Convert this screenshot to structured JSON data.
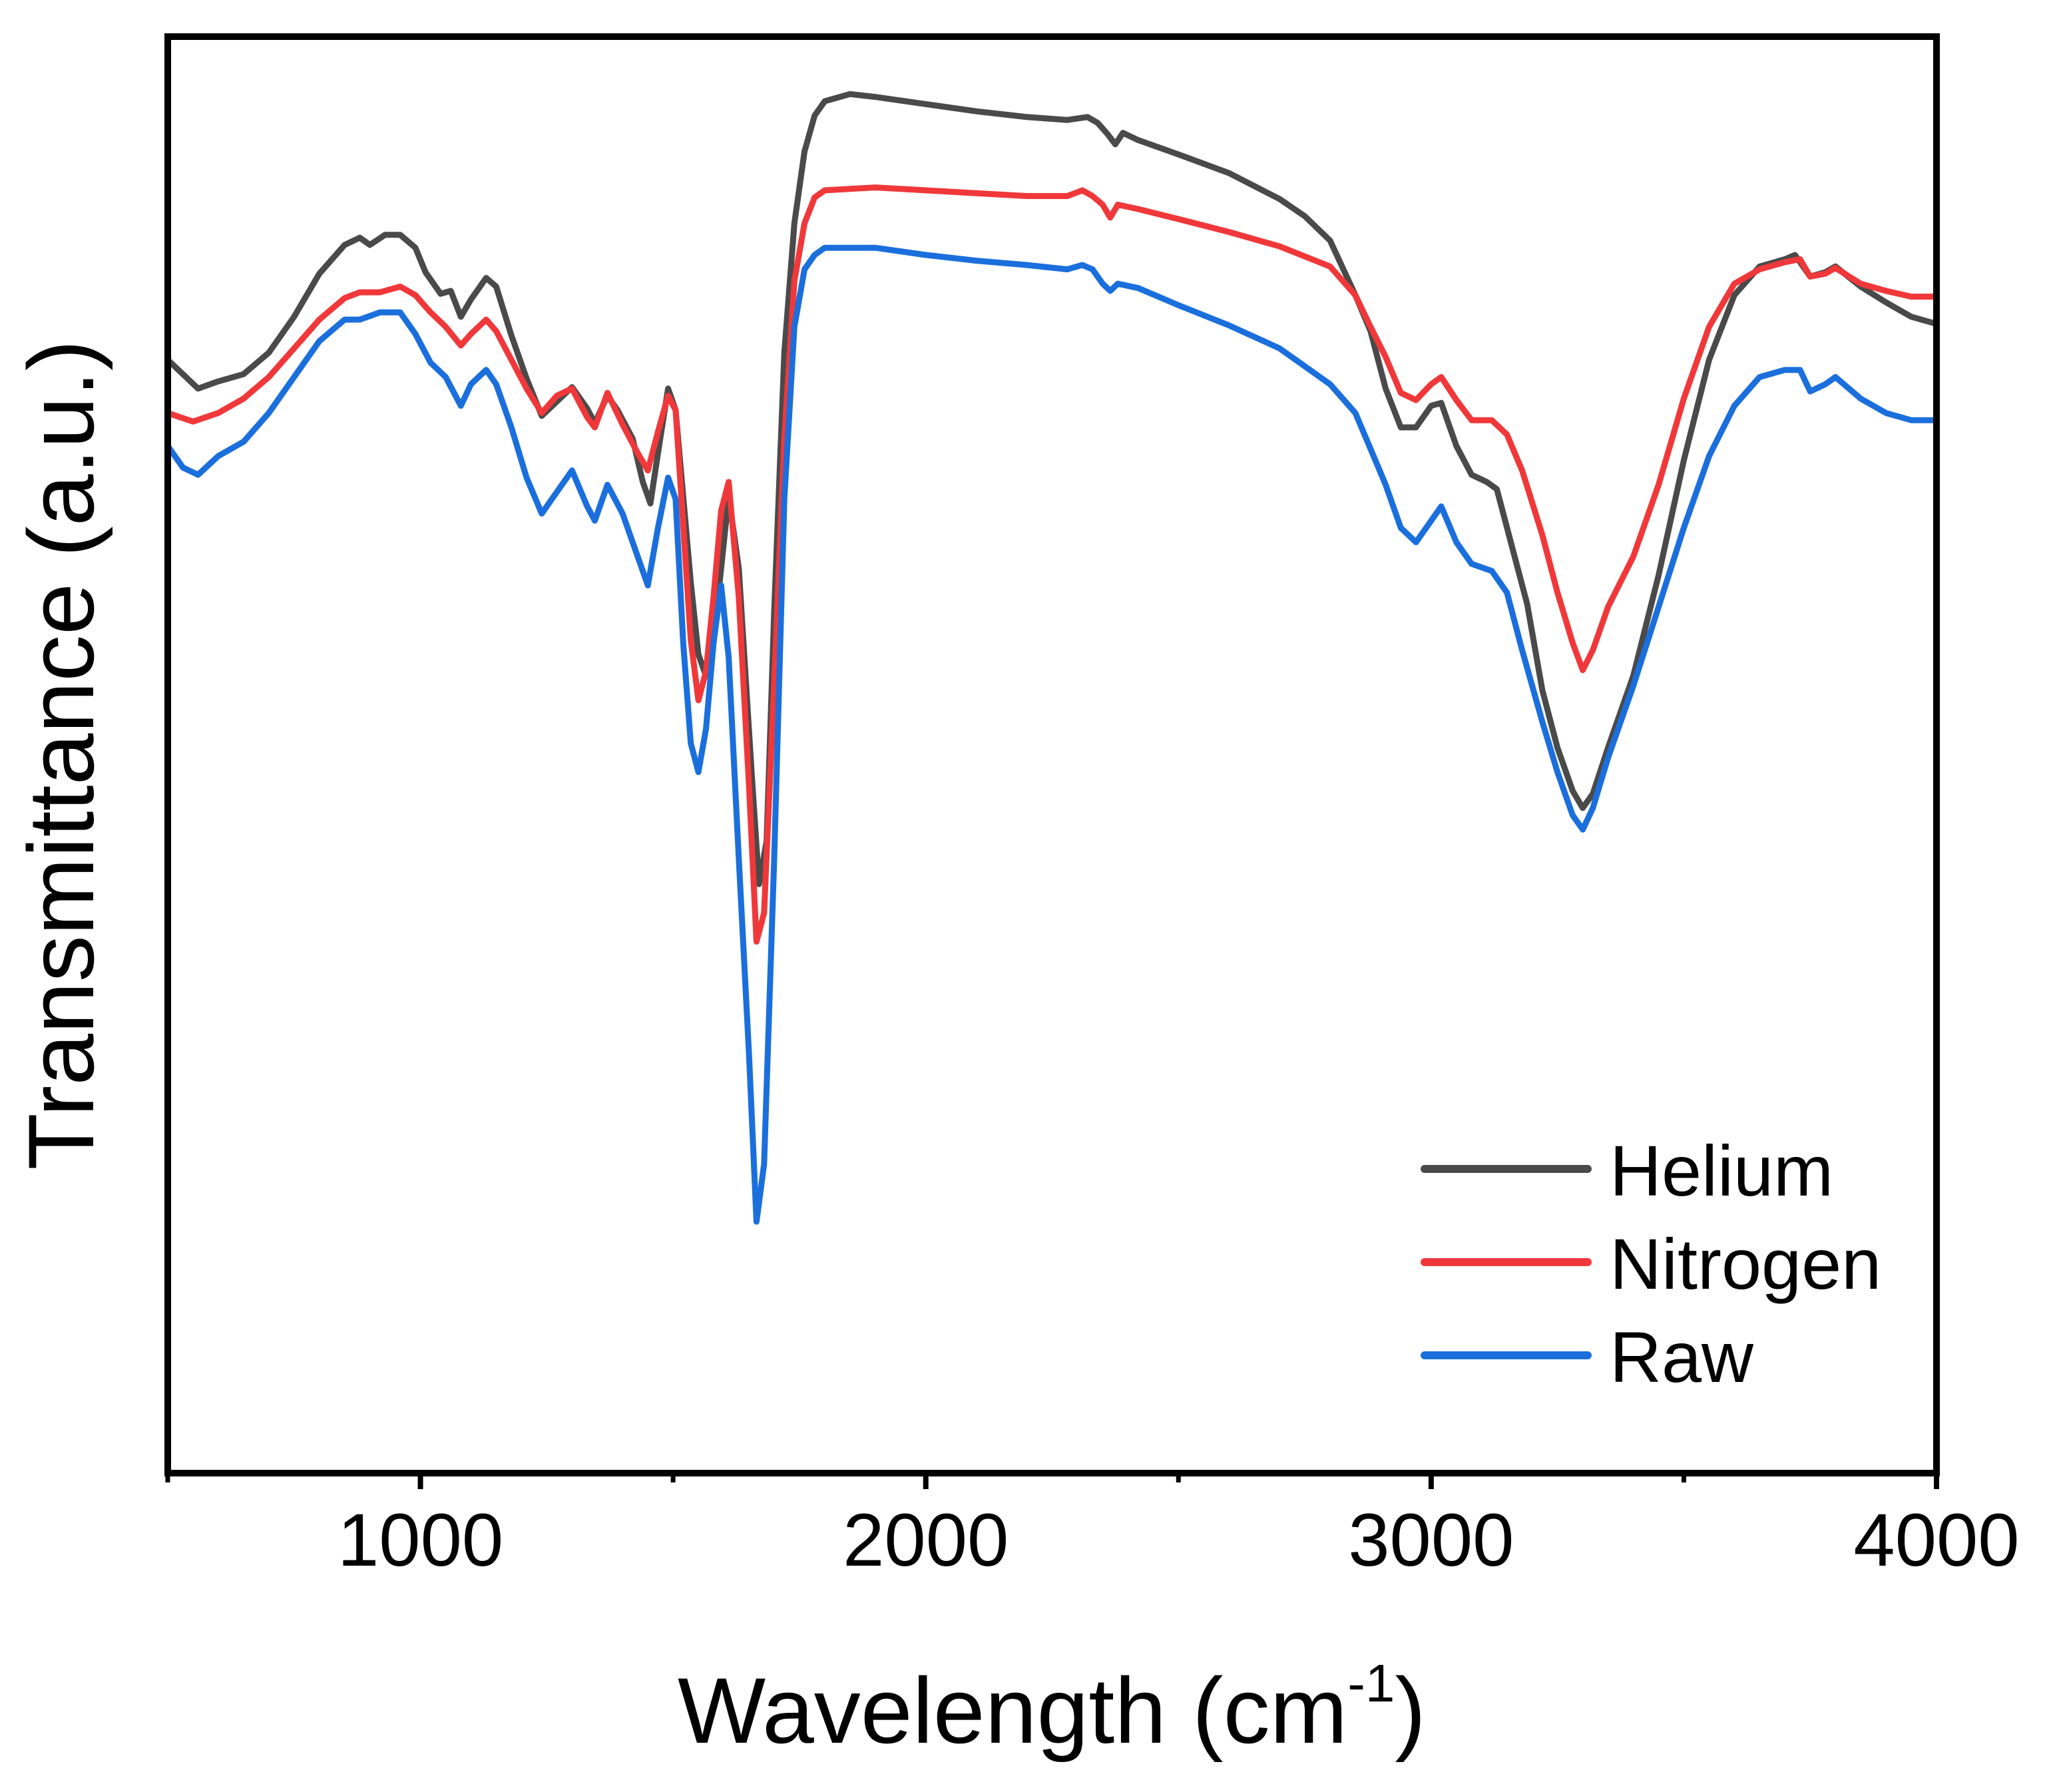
{
  "chart_data": {
    "type": "line",
    "title": "",
    "xlabel": "Wavelength (cm",
    "xlabel_sup": "-1",
    "xlabel_close": ")",
    "ylabel": "Transmittance (a.u.)",
    "xlim": [
      500,
      4000
    ],
    "ylim": [
      0,
      100
    ],
    "x_major_ticks": [
      1000,
      2000,
      3000,
      4000
    ],
    "x_minor_ticks": [
      500,
      1500,
      2500,
      3500
    ],
    "x_tick_labels": [
      "1000",
      "2000",
      "3000",
      "4000"
    ],
    "y_ticks_shown": false,
    "legend_position": "bottom-right",
    "series": [
      {
        "name": "Helium",
        "color": "#4a4a4a",
        "points": [
          [
            500,
            77.5
          ],
          [
            530,
            76.5
          ],
          [
            560,
            75.5
          ],
          [
            600,
            76
          ],
          [
            650,
            76.5
          ],
          [
            700,
            78
          ],
          [
            750,
            80.5
          ],
          [
            800,
            83.5
          ],
          [
            850,
            85.5
          ],
          [
            880,
            86
          ],
          [
            900,
            85.5
          ],
          [
            930,
            86.2
          ],
          [
            960,
            86.2
          ],
          [
            990,
            85.3
          ],
          [
            1010,
            83.6
          ],
          [
            1040,
            82.1
          ],
          [
            1060,
            82.3
          ],
          [
            1080,
            80.5
          ],
          [
            1100,
            81.7
          ],
          [
            1130,
            83.2
          ],
          [
            1150,
            82.6
          ],
          [
            1180,
            79.2
          ],
          [
            1210,
            76.2
          ],
          [
            1240,
            73.6
          ],
          [
            1270,
            74.6
          ],
          [
            1300,
            75.6
          ],
          [
            1330,
            74.1
          ],
          [
            1345,
            73.1
          ],
          [
            1370,
            75
          ],
          [
            1390,
            74
          ],
          [
            1420,
            72
          ],
          [
            1440,
            69
          ],
          [
            1455,
            67.5
          ],
          [
            1470,
            71
          ],
          [
            1490,
            75.5
          ],
          [
            1505,
            74
          ],
          [
            1520,
            68
          ],
          [
            1535,
            62
          ],
          [
            1550,
            57
          ],
          [
            1565,
            55.5
          ],
          [
            1580,
            58
          ],
          [
            1595,
            63
          ],
          [
            1610,
            68
          ],
          [
            1630,
            63
          ],
          [
            1655,
            49
          ],
          [
            1670,
            41
          ],
          [
            1685,
            44
          ],
          [
            1700,
            60
          ],
          [
            1720,
            78
          ],
          [
            1740,
            87
          ],
          [
            1760,
            92
          ],
          [
            1780,
            94.5
          ],
          [
            1800,
            95.5
          ],
          [
            1850,
            96
          ],
          [
            1900,
            95.8
          ],
          [
            2000,
            95.3
          ],
          [
            2100,
            94.8
          ],
          [
            2200,
            94.4
          ],
          [
            2280,
            94.2
          ],
          [
            2320,
            94.4
          ],
          [
            2340,
            94
          ],
          [
            2360,
            93.2
          ],
          [
            2375,
            92.5
          ],
          [
            2390,
            93.3
          ],
          [
            2420,
            92.8
          ],
          [
            2500,
            91.8
          ],
          [
            2600,
            90.5
          ],
          [
            2700,
            88.7
          ],
          [
            2750,
            87.5
          ],
          [
            2800,
            85.8
          ],
          [
            2850,
            82
          ],
          [
            2880,
            79.5
          ],
          [
            2910,
            75.5
          ],
          [
            2940,
            72.8
          ],
          [
            2970,
            72.8
          ],
          [
            3000,
            74.3
          ],
          [
            3020,
            74.5
          ],
          [
            3050,
            71.5
          ],
          [
            3080,
            69.5
          ],
          [
            3110,
            69
          ],
          [
            3130,
            68.5
          ],
          [
            3160,
            64.5
          ],
          [
            3190,
            60.5
          ],
          [
            3220,
            54.5
          ],
          [
            3250,
            50.5
          ],
          [
            3280,
            47.5
          ],
          [
            3300,
            46.3
          ],
          [
            3320,
            47.3
          ],
          [
            3350,
            50.5
          ],
          [
            3400,
            55.5
          ],
          [
            3450,
            62.5
          ],
          [
            3500,
            70.5
          ],
          [
            3550,
            77.5
          ],
          [
            3600,
            82
          ],
          [
            3650,
            84
          ],
          [
            3700,
            84.5
          ],
          [
            3720,
            84.8
          ],
          [
            3750,
            83.3
          ],
          [
            3780,
            83.6
          ],
          [
            3800,
            84
          ],
          [
            3850,
            82.6
          ],
          [
            3900,
            81.5
          ],
          [
            3950,
            80.5
          ],
          [
            4000,
            80
          ]
        ]
      },
      {
        "name": "Nitrogen",
        "color": "#f0383a",
        "points": [
          [
            500,
            73.8
          ],
          [
            550,
            73.2
          ],
          [
            600,
            73.8
          ],
          [
            650,
            74.8
          ],
          [
            700,
            76.3
          ],
          [
            750,
            78.3
          ],
          [
            800,
            80.3
          ],
          [
            850,
            81.8
          ],
          [
            880,
            82.2
          ],
          [
            920,
            82.2
          ],
          [
            960,
            82.6
          ],
          [
            990,
            82
          ],
          [
            1020,
            80.8
          ],
          [
            1050,
            79.8
          ],
          [
            1080,
            78.5
          ],
          [
            1100,
            79.3
          ],
          [
            1130,
            80.3
          ],
          [
            1150,
            79.5
          ],
          [
            1180,
            77.5
          ],
          [
            1210,
            75.5
          ],
          [
            1240,
            73.8
          ],
          [
            1270,
            75
          ],
          [
            1300,
            75.5
          ],
          [
            1330,
            73.5
          ],
          [
            1345,
            72.8
          ],
          [
            1370,
            75.2
          ],
          [
            1400,
            73
          ],
          [
            1430,
            71
          ],
          [
            1450,
            69.8
          ],
          [
            1470,
            72.5
          ],
          [
            1490,
            75
          ],
          [
            1505,
            74
          ],
          [
            1520,
            66
          ],
          [
            1535,
            58
          ],
          [
            1550,
            53.8
          ],
          [
            1565,
            55.8
          ],
          [
            1580,
            61
          ],
          [
            1595,
            67
          ],
          [
            1610,
            69
          ],
          [
            1630,
            61
          ],
          [
            1650,
            48
          ],
          [
            1665,
            37
          ],
          [
            1680,
            39
          ],
          [
            1700,
            55
          ],
          [
            1720,
            72
          ],
          [
            1740,
            83
          ],
          [
            1760,
            87
          ],
          [
            1780,
            88.8
          ],
          [
            1800,
            89.3
          ],
          [
            1900,
            89.5
          ],
          [
            2000,
            89.3
          ],
          [
            2100,
            89.1
          ],
          [
            2200,
            88.9
          ],
          [
            2280,
            88.9
          ],
          [
            2310,
            89.3
          ],
          [
            2330,
            88.9
          ],
          [
            2350,
            88.3
          ],
          [
            2365,
            87.4
          ],
          [
            2380,
            88.3
          ],
          [
            2420,
            88
          ],
          [
            2500,
            87.3
          ],
          [
            2600,
            86.4
          ],
          [
            2700,
            85.4
          ],
          [
            2800,
            84
          ],
          [
            2850,
            82
          ],
          [
            2880,
            79.8
          ],
          [
            2910,
            77.7
          ],
          [
            2940,
            75.2
          ],
          [
            2970,
            74.7
          ],
          [
            3000,
            75.8
          ],
          [
            3020,
            76.3
          ],
          [
            3050,
            74.7
          ],
          [
            3080,
            73.3
          ],
          [
            3120,
            73.3
          ],
          [
            3150,
            72.3
          ],
          [
            3180,
            69.8
          ],
          [
            3220,
            65.3
          ],
          [
            3250,
            61.3
          ],
          [
            3280,
            57.8
          ],
          [
            3300,
            55.9
          ],
          [
            3320,
            57.3
          ],
          [
            3350,
            60.3
          ],
          [
            3400,
            63.8
          ],
          [
            3450,
            68.8
          ],
          [
            3500,
            74.8
          ],
          [
            3550,
            79.8
          ],
          [
            3600,
            82.8
          ],
          [
            3650,
            83.8
          ],
          [
            3700,
            84.3
          ],
          [
            3730,
            84.5
          ],
          [
            3750,
            83.3
          ],
          [
            3780,
            83.5
          ],
          [
            3800,
            83.9
          ],
          [
            3850,
            82.8
          ],
          [
            3900,
            82.3
          ],
          [
            3950,
            81.9
          ],
          [
            4000,
            81.9
          ]
        ]
      },
      {
        "name": "Raw",
        "color": "#1b6fdc",
        "points": [
          [
            500,
            71.5
          ],
          [
            530,
            70
          ],
          [
            560,
            69.5
          ],
          [
            600,
            70.8
          ],
          [
            650,
            71.8
          ],
          [
            700,
            73.8
          ],
          [
            750,
            76.3
          ],
          [
            800,
            78.8
          ],
          [
            850,
            80.3
          ],
          [
            880,
            80.3
          ],
          [
            920,
            80.8
          ],
          [
            960,
            80.8
          ],
          [
            990,
            79.3
          ],
          [
            1020,
            77.3
          ],
          [
            1050,
            76.3
          ],
          [
            1080,
            74.3
          ],
          [
            1100,
            75.8
          ],
          [
            1130,
            76.8
          ],
          [
            1150,
            75.8
          ],
          [
            1180,
            72.8
          ],
          [
            1210,
            69.3
          ],
          [
            1240,
            66.8
          ],
          [
            1270,
            68.3
          ],
          [
            1300,
            69.8
          ],
          [
            1330,
            67.3
          ],
          [
            1345,
            66.3
          ],
          [
            1370,
            68.8
          ],
          [
            1400,
            66.8
          ],
          [
            1430,
            63.8
          ],
          [
            1450,
            61.8
          ],
          [
            1470,
            65.8
          ],
          [
            1490,
            69.3
          ],
          [
            1505,
            67.8
          ],
          [
            1520,
            57.8
          ],
          [
            1535,
            50.8
          ],
          [
            1550,
            48.8
          ],
          [
            1565,
            51.8
          ],
          [
            1580,
            57.8
          ],
          [
            1595,
            61.8
          ],
          [
            1610,
            56.8
          ],
          [
            1630,
            42.8
          ],
          [
            1650,
            29.3
          ],
          [
            1665,
            17.5
          ],
          [
            1680,
            21.5
          ],
          [
            1700,
            42.8
          ],
          [
            1720,
            67.8
          ],
          [
            1740,
            79.8
          ],
          [
            1760,
            83.8
          ],
          [
            1780,
            84.8
          ],
          [
            1800,
            85.3
          ],
          [
            1900,
            85.3
          ],
          [
            2000,
            84.8
          ],
          [
            2100,
            84.4
          ],
          [
            2200,
            84.1
          ],
          [
            2280,
            83.8
          ],
          [
            2310,
            84.1
          ],
          [
            2330,
            83.8
          ],
          [
            2350,
            82.8
          ],
          [
            2365,
            82.3
          ],
          [
            2380,
            82.8
          ],
          [
            2420,
            82.5
          ],
          [
            2500,
            81.3
          ],
          [
            2600,
            79.9
          ],
          [
            2700,
            78.3
          ],
          [
            2800,
            75.8
          ],
          [
            2850,
            73.8
          ],
          [
            2880,
            71.3
          ],
          [
            2910,
            68.8
          ],
          [
            2940,
            65.8
          ],
          [
            2970,
            64.8
          ],
          [
            3000,
            66.3
          ],
          [
            3020,
            67.3
          ],
          [
            3050,
            64.8
          ],
          [
            3080,
            63.3
          ],
          [
            3120,
            62.8
          ],
          [
            3150,
            61.3
          ],
          [
            3180,
            57.3
          ],
          [
            3220,
            52.3
          ],
          [
            3250,
            48.8
          ],
          [
            3280,
            45.8
          ],
          [
            3300,
            44.8
          ],
          [
            3320,
            46.3
          ],
          [
            3350,
            49.8
          ],
          [
            3400,
            54.8
          ],
          [
            3450,
            60.3
          ],
          [
            3500,
            65.8
          ],
          [
            3550,
            70.8
          ],
          [
            3600,
            74.3
          ],
          [
            3650,
            76.3
          ],
          [
            3700,
            76.8
          ],
          [
            3730,
            76.8
          ],
          [
            3750,
            75.3
          ],
          [
            3780,
            75.8
          ],
          [
            3800,
            76.3
          ],
          [
            3850,
            74.8
          ],
          [
            3900,
            73.8
          ],
          [
            3950,
            73.3
          ],
          [
            4000,
            73.3
          ]
        ]
      }
    ]
  }
}
